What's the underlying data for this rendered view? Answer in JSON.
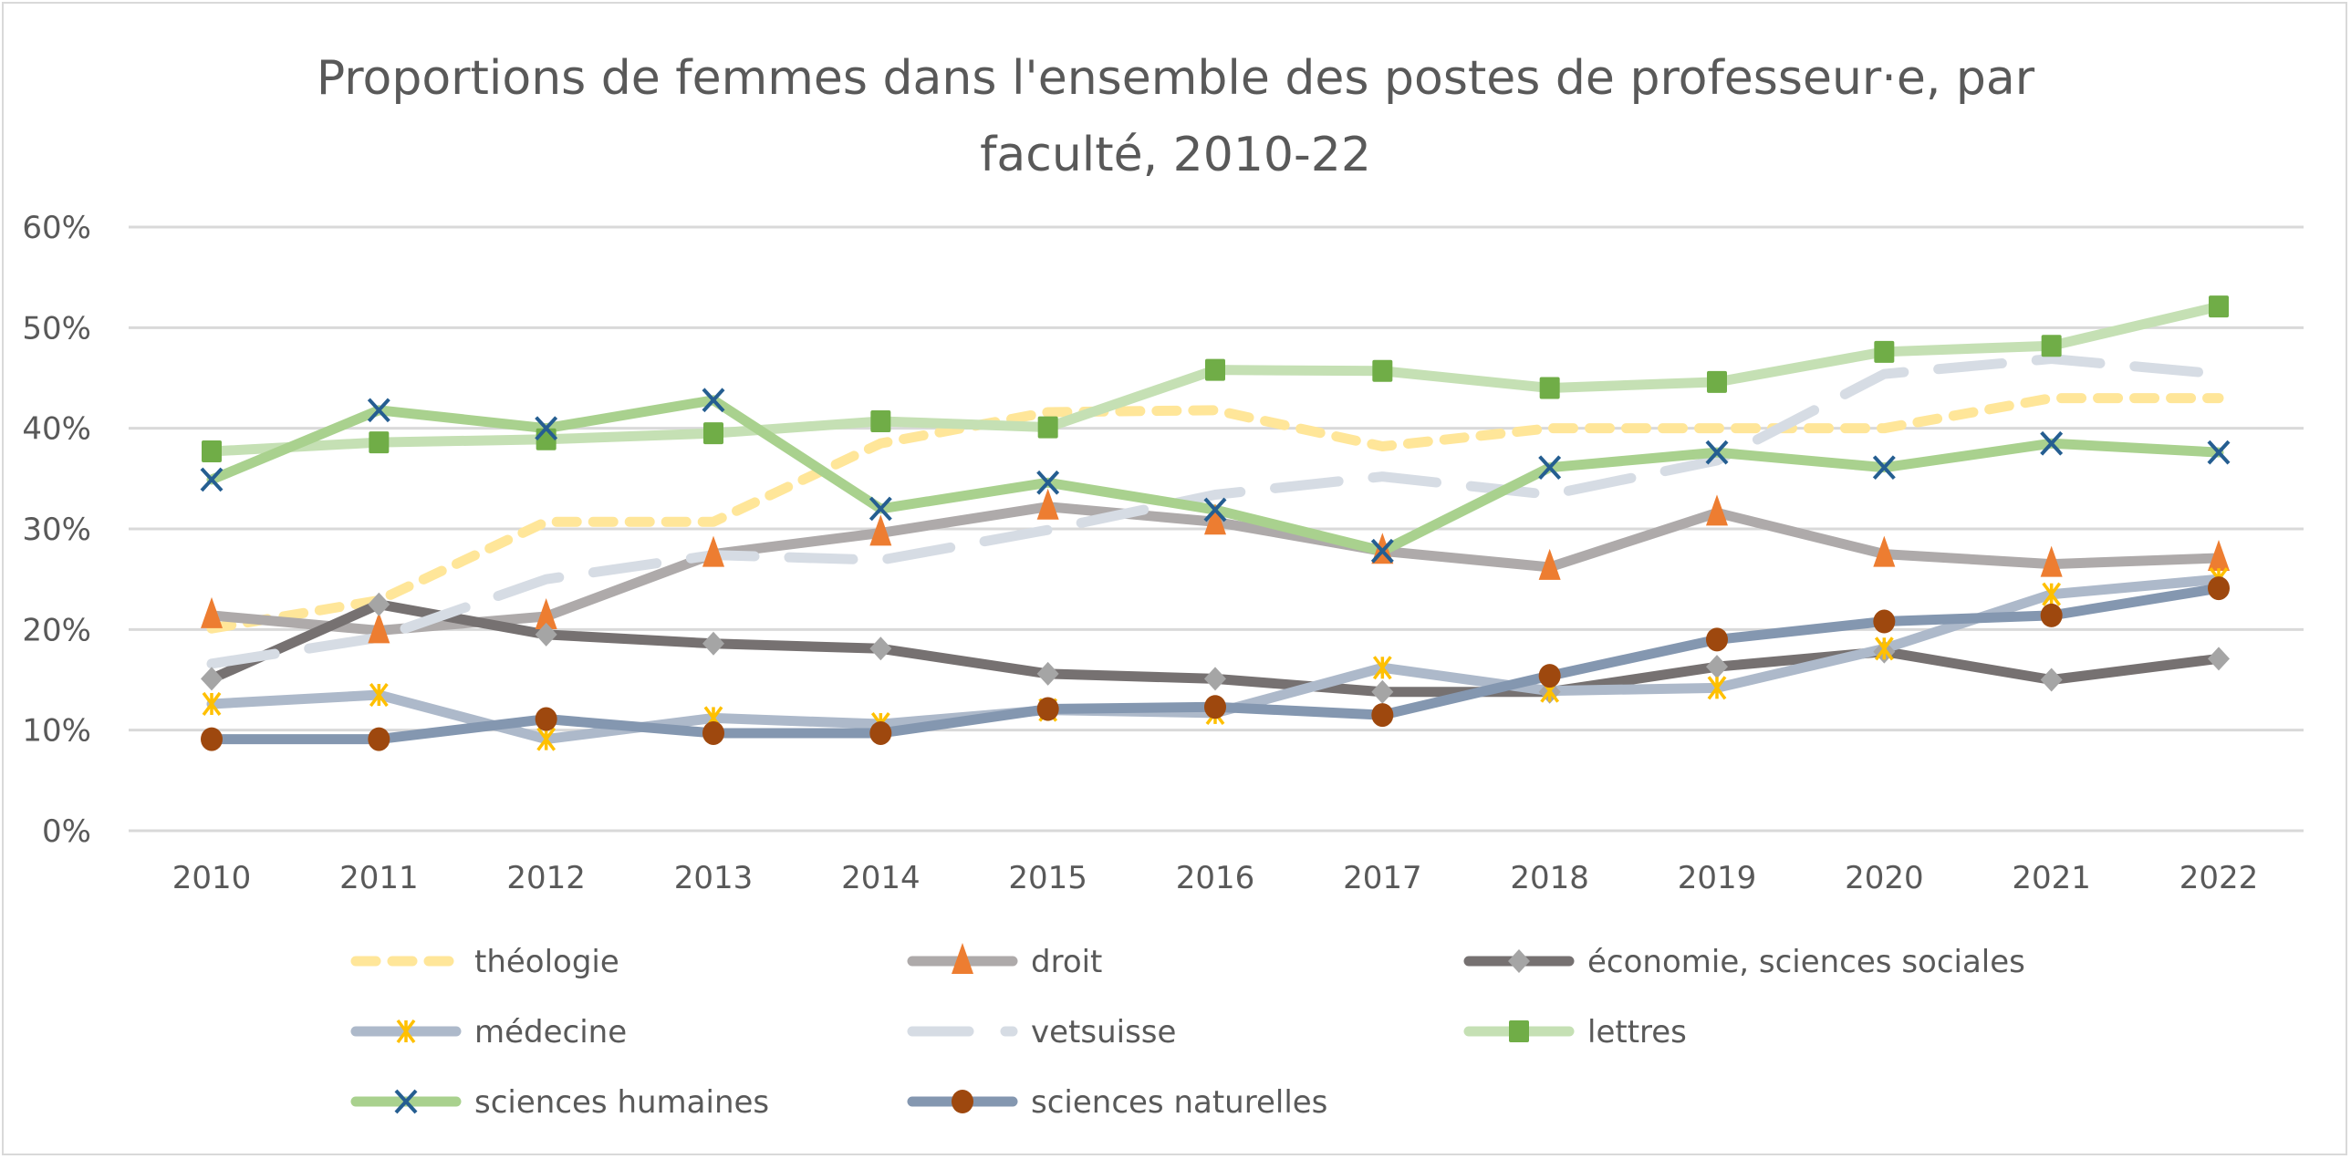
{
  "chart_data": {
    "type": "line",
    "title": "Proportions de femmes dans l'ensemble des postes de professeur·e, par faculté, 2010-22",
    "title_lines": [
      "Proportions de femmes dans l'ensemble des postes de professeur·e, par",
      "faculté, 2010-22"
    ],
    "xlabel": "",
    "ylabel": "",
    "x": [
      "2010",
      "2011",
      "2012",
      "2013",
      "2014",
      "2015",
      "2016",
      "2017",
      "2018",
      "2019",
      "2020",
      "2021",
      "2022"
    ],
    "ylim": [
      0,
      60
    ],
    "yticks": [
      0,
      10,
      20,
      30,
      40,
      50,
      60
    ],
    "ytick_labels": [
      "0%",
      "10%",
      "20%",
      "30%",
      "40%",
      "50%",
      "60%"
    ],
    "grid": true,
    "legend_position": "bottom",
    "series": [
      {
        "name": "théologie",
        "color": "#ffe699",
        "dash": "short",
        "marker": "none",
        "marker_color": "#ffe699",
        "values": [
          20.1,
          22.9,
          30.7,
          30.7,
          38.5,
          41.6,
          41.8,
          38.2,
          40.0,
          40.0,
          40.0,
          43.0,
          43.0
        ]
      },
      {
        "name": "droit",
        "color": "#aeaaaa",
        "dash": "solid",
        "marker": "triangle",
        "marker_color": "#ed7d31",
        "values": [
          21.4,
          19.9,
          21.3,
          27.5,
          29.6,
          32.2,
          30.7,
          27.8,
          26.2,
          31.6,
          27.5,
          26.5,
          27.1
        ]
      },
      {
        "name": "économie, sciences sociales",
        "color": "#767171",
        "dash": "solid",
        "marker": "diamond",
        "marker_color": "#a5a5a5",
        "values": [
          15.1,
          22.5,
          19.5,
          18.6,
          18.1,
          15.6,
          15.1,
          13.8,
          13.8,
          16.3,
          17.8,
          15.0,
          17.1
        ]
      },
      {
        "name": "médecine",
        "color": "#adb9ca",
        "dash": "solid",
        "marker": "star",
        "marker_color": "#ffc000",
        "values": [
          12.6,
          13.5,
          9.1,
          11.2,
          10.6,
          12.0,
          11.7,
          16.2,
          13.9,
          14.2,
          18.1,
          23.5,
          25.0
        ]
      },
      {
        "name": "vetsuisse",
        "color": "#d6dce4",
        "dash": "long",
        "marker": "none",
        "marker_color": "#d6dce4",
        "values": [
          16.6,
          19.2,
          25.0,
          27.4,
          26.9,
          29.9,
          33.4,
          35.2,
          33.4,
          36.8,
          45.4,
          46.9,
          45.4
        ]
      },
      {
        "name": "lettres",
        "color": "#c5e0b4",
        "dash": "solid",
        "marker": "square",
        "marker_color": "#70ad47",
        "values": [
          37.7,
          38.6,
          38.9,
          39.5,
          40.7,
          40.1,
          45.8,
          45.7,
          44.0,
          44.6,
          47.6,
          48.2,
          52.1
        ]
      },
      {
        "name": "sciences humaines",
        "color": "#a9d18e",
        "dash": "solid",
        "marker": "x",
        "marker_color": "#255e91",
        "values": [
          34.9,
          41.8,
          40.0,
          42.8,
          32.0,
          34.6,
          31.9,
          27.8,
          36.1,
          37.6,
          36.1,
          38.5,
          37.6
        ]
      },
      {
        "name": "sciences naturelles",
        "color": "#8497b0",
        "dash": "solid",
        "marker": "circle",
        "marker_color": "#9e480e",
        "values": [
          9.1,
          9.1,
          11.1,
          9.7,
          9.7,
          12.1,
          12.3,
          11.5,
          15.4,
          19.0,
          20.8,
          21.4,
          24.1
        ]
      }
    ]
  }
}
